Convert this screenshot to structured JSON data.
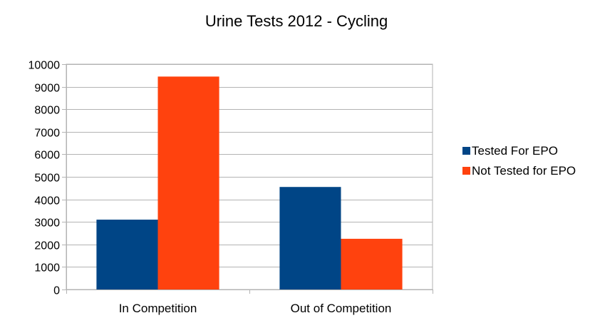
{
  "chart_data": {
    "type": "bar",
    "title": "Urine Tests 2012 - Cycling",
    "xlabel": "",
    "ylabel": "",
    "categories": [
      "In Competition",
      "Out of Competition"
    ],
    "series": [
      {
        "name": "Tested For EPO",
        "color": "#004586",
        "values": [
          3100,
          4550
        ]
      },
      {
        "name": "Not Tested for EPO",
        "color": "#ff420e",
        "values": [
          9450,
          2250
        ]
      }
    ],
    "ylim": [
      0,
      10000
    ],
    "yticks": [
      0,
      1000,
      2000,
      3000,
      4000,
      5000,
      6000,
      7000,
      8000,
      9000,
      10000
    ],
    "grid": true,
    "legend_position": "right"
  }
}
